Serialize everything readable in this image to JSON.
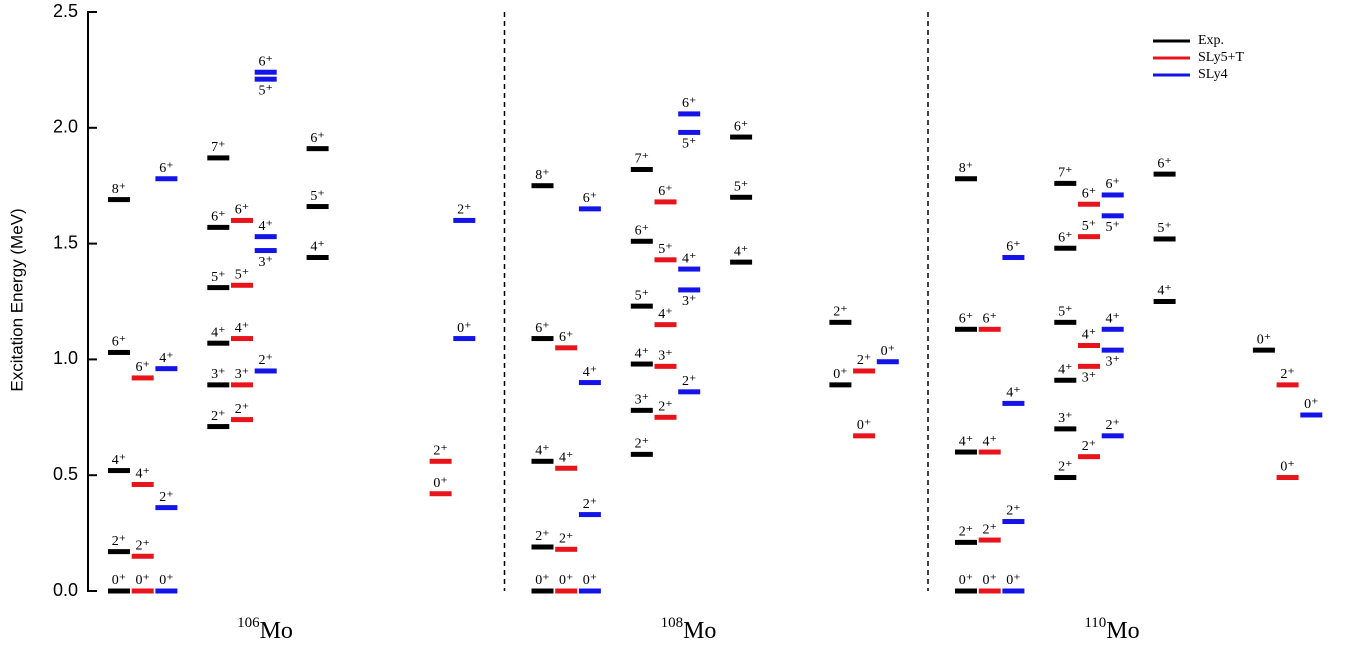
{
  "chart_data": {
    "type": "level-scheme",
    "ylabel": "Excitation Energy (MeV)",
    "ylim": [
      0,
      2.5
    ],
    "yticks": [
      {
        "value": 0,
        "label": "0.0"
      },
      0.5,
      {
        "value": 1,
        "label": "1.0"
      },
      1.5,
      {
        "value": 2,
        "label": "2.0"
      },
      2.5
    ],
    "series": [
      {
        "name": "Exp.",
        "color": "#000000"
      },
      {
        "name": "SLy5+T",
        "color": "#e8141b"
      },
      {
        "name": "SLy4",
        "color": "#1414e8"
      }
    ],
    "panels": [
      {
        "mass": "106",
        "symbol": "Mo",
        "levels": [
          {
            "band": 0,
            "series": 0,
            "energy": 0,
            "label": "0⁺"
          },
          {
            "band": 0,
            "series": 0,
            "energy": 0.17,
            "label": "2⁺"
          },
          {
            "band": 0,
            "series": 0,
            "energy": 0.52,
            "label": "4⁺"
          },
          {
            "band": 0,
            "series": 0,
            "energy": 1.03,
            "label": "6⁺"
          },
          {
            "band": 0,
            "series": 0,
            "energy": 1.69,
            "label": "8⁺"
          },
          {
            "band": 0,
            "series": 1,
            "energy": 0,
            "label": "0⁺"
          },
          {
            "band": 0,
            "series": 1,
            "energy": 0.15,
            "label": "2⁺"
          },
          {
            "band": 0,
            "series": 1,
            "energy": 0.46,
            "label": "4⁺"
          },
          {
            "band": 0,
            "series": 1,
            "energy": 0.92,
            "label": "6⁺"
          },
          {
            "band": 0,
            "series": 2,
            "energy": 0,
            "label": "0⁺"
          },
          {
            "band": 0,
            "series": 2,
            "energy": 0.36,
            "label": "2⁺"
          },
          {
            "band": 0,
            "series": 2,
            "energy": 0.96,
            "label": "4⁺"
          },
          {
            "band": 0,
            "series": 2,
            "energy": 1.78,
            "label": "6⁺"
          },
          {
            "band": 1,
            "series": 0,
            "energy": 0.71,
            "label": "2⁺"
          },
          {
            "band": 1,
            "series": 0,
            "energy": 0.89,
            "label": "3⁺"
          },
          {
            "band": 1,
            "series": 0,
            "energy": 1.07,
            "label": "4⁺"
          },
          {
            "band": 1,
            "series": 0,
            "energy": 1.31,
            "label": "5⁺"
          },
          {
            "band": 1,
            "series": 0,
            "energy": 1.57,
            "label": "6⁺"
          },
          {
            "band": 1,
            "series": 0,
            "energy": 1.87,
            "label": "7⁺"
          },
          {
            "band": 1,
            "series": 1,
            "energy": 0.74,
            "label": "2⁺"
          },
          {
            "band": 1,
            "series": 1,
            "energy": 0.89,
            "label": "3⁺"
          },
          {
            "band": 1,
            "series": 1,
            "energy": 1.09,
            "label": "4⁺"
          },
          {
            "band": 1,
            "series": 1,
            "energy": 1.32,
            "label": "5⁺"
          },
          {
            "band": 1,
            "series": 1,
            "energy": 1.6,
            "label": "6⁺"
          },
          {
            "band": 1,
            "series": 2,
            "energy": 0.95,
            "label": "2⁺"
          },
          {
            "band": 1,
            "series": 2,
            "energy": 1.47,
            "label": "3⁺"
          },
          {
            "band": 1,
            "series": 2,
            "energy": 1.53,
            "label": "4⁺"
          },
          {
            "band": 1,
            "series": 2,
            "energy": 2.21,
            "label": "5⁺"
          },
          {
            "band": 1,
            "series": 2,
            "energy": 2.24,
            "label": "6⁺"
          },
          {
            "band": 2,
            "series": 0,
            "energy": 1.44,
            "label": "4⁺"
          },
          {
            "band": 2,
            "series": 0,
            "energy": 1.66,
            "label": "5⁺"
          },
          {
            "band": 2,
            "series": 0,
            "energy": 1.91,
            "label": "6⁺"
          },
          {
            "band": 3,
            "series": 1,
            "energy": 0.42,
            "label": "0⁺"
          },
          {
            "band": 3,
            "series": 1,
            "energy": 0.56,
            "label": "2⁺"
          },
          {
            "band": 3,
            "series": 2,
            "energy": 1.09,
            "label": "0⁺"
          },
          {
            "band": 3,
            "series": 2,
            "energy": 1.6,
            "label": "2⁺"
          }
        ]
      },
      {
        "mass": "108",
        "symbol": "Mo",
        "levels": [
          {
            "band": 0,
            "series": 0,
            "energy": 0,
            "label": "0⁺"
          },
          {
            "band": 0,
            "series": 0,
            "energy": 0.19,
            "label": "2⁺"
          },
          {
            "band": 0,
            "series": 0,
            "energy": 0.56,
            "label": "4⁺"
          },
          {
            "band": 0,
            "series": 0,
            "energy": 1.09,
            "label": "6⁺"
          },
          {
            "band": 0,
            "series": 0,
            "energy": 1.75,
            "label": "8⁺"
          },
          {
            "band": 0,
            "series": 1,
            "energy": 0,
            "label": "0⁺"
          },
          {
            "band": 0,
            "series": 1,
            "energy": 0.18,
            "label": "2⁺"
          },
          {
            "band": 0,
            "series": 1,
            "energy": 0.53,
            "label": "4⁺"
          },
          {
            "band": 0,
            "series": 1,
            "energy": 1.05,
            "label": "6⁺"
          },
          {
            "band": 0,
            "series": 2,
            "energy": 0,
            "label": "0⁺"
          },
          {
            "band": 0,
            "series": 2,
            "energy": 0.33,
            "label": "2⁺"
          },
          {
            "band": 0,
            "series": 2,
            "energy": 0.9,
            "label": "4⁺"
          },
          {
            "band": 0,
            "series": 2,
            "energy": 1.65,
            "label": "6⁺"
          },
          {
            "band": 1,
            "series": 0,
            "energy": 0.59,
            "label": "2⁺"
          },
          {
            "band": 1,
            "series": 0,
            "energy": 0.78,
            "label": "3⁺"
          },
          {
            "band": 1,
            "series": 0,
            "energy": 0.98,
            "label": "4⁺"
          },
          {
            "band": 1,
            "series": 0,
            "energy": 1.23,
            "label": "5⁺"
          },
          {
            "band": 1,
            "series": 0,
            "energy": 1.51,
            "label": "6⁺"
          },
          {
            "band": 1,
            "series": 0,
            "energy": 1.82,
            "label": "7⁺"
          },
          {
            "band": 1,
            "series": 1,
            "energy": 0.75,
            "label": "2⁺"
          },
          {
            "band": 1,
            "series": 1,
            "energy": 0.97,
            "label": "3⁺"
          },
          {
            "band": 1,
            "series": 1,
            "energy": 1.15,
            "label": "4⁺"
          },
          {
            "band": 1,
            "series": 1,
            "energy": 1.43,
            "label": "5⁺"
          },
          {
            "band": 1,
            "series": 1,
            "energy": 1.68,
            "label": "6⁺"
          },
          {
            "band": 1,
            "series": 2,
            "energy": 0.86,
            "label": "2⁺"
          },
          {
            "band": 1,
            "series": 2,
            "energy": 1.3,
            "label": "3⁺"
          },
          {
            "band": 1,
            "series": 2,
            "energy": 1.39,
            "label": "4⁺"
          },
          {
            "band": 1,
            "series": 2,
            "energy": 1.98,
            "label": "5⁺"
          },
          {
            "band": 1,
            "series": 2,
            "energy": 2.06,
            "label": "6⁺"
          },
          {
            "band": 2,
            "series": 0,
            "energy": 1.42,
            "label": "4⁺"
          },
          {
            "band": 2,
            "series": 0,
            "energy": 1.7,
            "label": "5⁺"
          },
          {
            "band": 2,
            "series": 0,
            "energy": 1.96,
            "label": "6⁺"
          },
          {
            "band": 3,
            "series": 0,
            "energy": 0.89,
            "label": "0⁺"
          },
          {
            "band": 3,
            "series": 0,
            "energy": 1.16,
            "label": "2⁺"
          },
          {
            "band": 3,
            "series": 1,
            "energy": 0.67,
            "label": "0⁺"
          },
          {
            "band": 3,
            "series": 1,
            "energy": 0.95,
            "label": "2⁺"
          },
          {
            "band": 3,
            "series": 2,
            "energy": 0.99,
            "label": "0⁺"
          }
        ]
      },
      {
        "mass": "110",
        "symbol": "Mo",
        "levels": [
          {
            "band": 0,
            "series": 0,
            "energy": 0,
            "label": "0⁺"
          },
          {
            "band": 0,
            "series": 0,
            "energy": 0.21,
            "label": "2⁺"
          },
          {
            "band": 0,
            "series": 0,
            "energy": 0.6,
            "label": "4⁺"
          },
          {
            "band": 0,
            "series": 0,
            "energy": 1.13,
            "label": "6⁺"
          },
          {
            "band": 0,
            "series": 0,
            "energy": 1.78,
            "label": "8⁺"
          },
          {
            "band": 0,
            "series": 1,
            "energy": 0,
            "label": "0⁺"
          },
          {
            "band": 0,
            "series": 1,
            "energy": 0.22,
            "label": "2⁺"
          },
          {
            "band": 0,
            "series": 1,
            "energy": 0.6,
            "label": "4⁺"
          },
          {
            "band": 0,
            "series": 1,
            "energy": 1.13,
            "label": "6⁺"
          },
          {
            "band": 0,
            "series": 2,
            "energy": 0,
            "label": "0⁺"
          },
          {
            "band": 0,
            "series": 2,
            "energy": 0.3,
            "label": "2⁺"
          },
          {
            "band": 0,
            "series": 2,
            "energy": 0.81,
            "label": "4⁺"
          },
          {
            "band": 0,
            "series": 2,
            "energy": 1.44,
            "label": "6⁺"
          },
          {
            "band": 1,
            "series": 0,
            "energy": 0.49,
            "label": "2⁺"
          },
          {
            "band": 1,
            "series": 0,
            "energy": 0.7,
            "label": "3⁺"
          },
          {
            "band": 1,
            "series": 0,
            "energy": 0.91,
            "label": "4⁺"
          },
          {
            "band": 1,
            "series": 0,
            "energy": 1.16,
            "label": "5⁺"
          },
          {
            "band": 1,
            "series": 0,
            "energy": 1.48,
            "label": "6⁺"
          },
          {
            "band": 1,
            "series": 0,
            "energy": 1.76,
            "label": "7⁺"
          },
          {
            "band": 1,
            "series": 1,
            "energy": 0.58,
            "label": "2⁺"
          },
          {
            "band": 1,
            "series": 1,
            "energy": 0.97,
            "label": "3⁺"
          },
          {
            "band": 1,
            "series": 1,
            "energy": 1.06,
            "label": "4⁺"
          },
          {
            "band": 1,
            "series": 1,
            "energy": 1.53,
            "label": "5⁺"
          },
          {
            "band": 1,
            "series": 1,
            "energy": 1.67,
            "label": "6⁺"
          },
          {
            "band": 1,
            "series": 2,
            "energy": 0.67,
            "label": "2⁺"
          },
          {
            "band": 1,
            "series": 2,
            "energy": 1.04,
            "label": "3⁺"
          },
          {
            "band": 1,
            "series": 2,
            "energy": 1.13,
            "label": "4⁺"
          },
          {
            "band": 1,
            "series": 2,
            "energy": 1.62,
            "label": "5⁺"
          },
          {
            "band": 1,
            "series": 2,
            "energy": 1.71,
            "label": "6⁺"
          },
          {
            "band": 2,
            "series": 0,
            "energy": 1.25,
            "label": "4⁺"
          },
          {
            "band": 2,
            "series": 0,
            "energy": 1.52,
            "label": "5⁺"
          },
          {
            "band": 2,
            "series": 0,
            "energy": 1.8,
            "label": "6⁺"
          },
          {
            "band": 3,
            "series": 0,
            "energy": 1.04,
            "label": "0⁺"
          },
          {
            "band": 3,
            "series": 1,
            "energy": 0.49,
            "label": "0⁺"
          },
          {
            "band": 3,
            "series": 1,
            "energy": 0.89,
            "label": "2⁺"
          },
          {
            "band": 3,
            "series": 2,
            "energy": 0.76,
            "label": "0⁺"
          }
        ]
      }
    ]
  }
}
